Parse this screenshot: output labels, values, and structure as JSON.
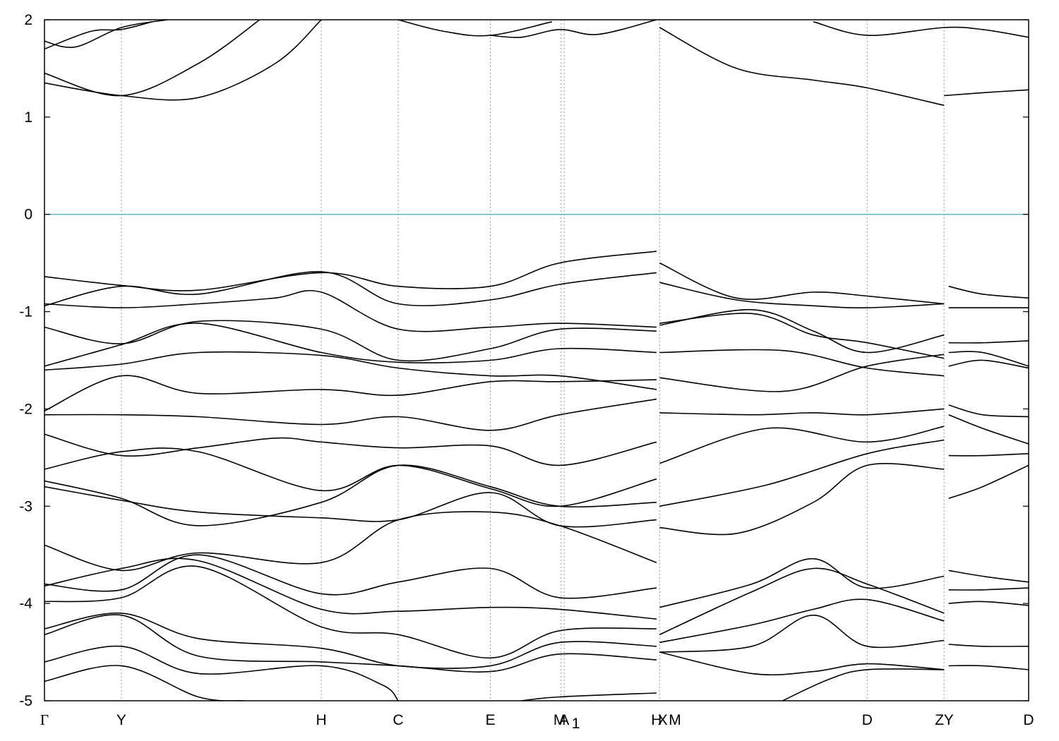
{
  "chart_data": {
    "type": "line",
    "title": "",
    "xlabel": "",
    "ylabel": "",
    "ylim": [
      -5,
      2
    ],
    "yticks": [
      "-5",
      "-4",
      "-3",
      "-2",
      "-1",
      "0",
      "1",
      "2"
    ],
    "grid": "dashed vertical lines at high-symmetry points",
    "fermi_level": {
      "y": 0,
      "color": "#64b4c8"
    },
    "kpoints": [
      {
        "label": "Γ",
        "x": 0.0
      },
      {
        "label": "Y",
        "x": 0.5
      },
      {
        "label": "H",
        "x": 1.8
      },
      {
        "label": "C",
        "x": 2.3
      },
      {
        "label": "E",
        "x": 2.9
      },
      {
        "label": "M",
        "x": 3.35
      },
      {
        "label": "A",
        "x": 3.38
      },
      {
        "label": "1",
        "x": 3.42
      },
      {
        "label": "H",
        "x": 3.98
      },
      {
        "label": "X",
        "x": 4.02
      },
      {
        "label": "M",
        "x": 4.1
      },
      {
        "label": "D",
        "x": 5.35
      },
      {
        "label": "Z",
        "x": 5.82
      },
      {
        "label": "Y",
        "x": 5.88
      },
      {
        "label": "D",
        "x": 6.4
      }
    ],
    "gridlines_x": [
      0.5,
      1.8,
      2.3,
      2.9,
      3.36,
      3.38,
      4.0,
      5.35,
      5.85
    ],
    "xlim": [
      0,
      6.4
    ],
    "series": [
      {
        "x": [
          0,
          0.5,
          1.0,
          1.5,
          1.8
        ],
        "values": [
          1.35,
          1.22,
          1.2,
          1.55,
          2.0
        ]
      },
      {
        "x": [
          0,
          0.5,
          1.0,
          1.4
        ],
        "values": [
          1.45,
          1.22,
          1.55,
          2.0
        ]
      },
      {
        "x": [
          0,
          0.2,
          0.5,
          0.8
        ],
        "values": [
          1.78,
          1.72,
          1.92,
          2.0
        ]
      },
      {
        "x": [
          0,
          0.3,
          0.5,
          0.7
        ],
        "values": [
          1.7,
          1.88,
          1.9,
          1.98
        ]
      },
      {
        "x": [
          2.9,
          3.1,
          3.35,
          3.6,
          3.98
        ],
        "values": [
          1.84,
          1.82,
          1.9,
          1.85,
          2.0
        ]
      },
      {
        "x": [
          2.3,
          2.6,
          2.9,
          3.3
        ],
        "values": [
          2.0,
          1.88,
          1.84,
          1.98
        ]
      },
      {
        "x": [
          4.0,
          4.5,
          5.0,
          5.35,
          5.85
        ],
        "values": [
          1.92,
          1.5,
          1.38,
          1.3,
          1.12
        ]
      },
      {
        "x": [
          5.85,
          6.1,
          6.4
        ],
        "values": [
          1.22,
          1.25,
          1.28
        ]
      },
      {
        "x": [
          5.0,
          5.35,
          5.85,
          6.1,
          6.4
        ],
        "values": [
          1.98,
          1.84,
          1.92,
          1.9,
          1.82
        ]
      },
      {
        "x": [
          0,
          0.5,
          1.0,
          1.8,
          2.3,
          2.9,
          3.35,
          3.98
        ],
        "values": [
          -0.64,
          -0.73,
          -0.78,
          -0.6,
          -0.74,
          -0.74,
          -0.5,
          -0.38
        ]
      },
      {
        "x": [
          0,
          0.5,
          1.0,
          1.8,
          2.3,
          2.9,
          3.35,
          3.98
        ],
        "values": [
          -0.94,
          -0.74,
          -0.82,
          -0.59,
          -0.92,
          -0.88,
          -0.72,
          -0.6
        ]
      },
      {
        "x": [
          0,
          0.5,
          1.0,
          1.5,
          1.8,
          2.3,
          2.9,
          3.35,
          3.98
        ],
        "values": [
          -0.92,
          -0.96,
          -0.92,
          -0.86,
          -0.8,
          -1.18,
          -1.16,
          -1.12,
          -1.16
        ]
      },
      {
        "x": [
          0,
          0.5,
          1.0,
          1.8,
          2.3,
          2.9,
          3.35,
          3.98
        ],
        "values": [
          -1.16,
          -1.33,
          -1.1,
          -1.18,
          -1.5,
          -1.38,
          -1.18,
          -1.2
        ]
      },
      {
        "x": [
          0,
          0.5,
          1.0,
          1.8,
          2.3,
          2.9,
          3.35,
          3.98
        ],
        "values": [
          -1.56,
          -1.34,
          -1.12,
          -1.42,
          -1.52,
          -1.5,
          -1.38,
          -1.42
        ]
      },
      {
        "x": [
          0,
          0.5,
          1.0,
          1.8,
          2.3,
          2.9,
          3.35,
          3.98
        ],
        "values": [
          -1.6,
          -1.54,
          -1.42,
          -1.45,
          -1.58,
          -1.66,
          -1.66,
          -1.8
        ]
      },
      {
        "x": [
          0,
          0.5,
          1.0,
          1.8,
          2.3,
          2.9,
          3.35,
          3.98
        ],
        "values": [
          -2.02,
          -1.66,
          -1.84,
          -1.8,
          -1.86,
          -1.72,
          -1.72,
          -1.7
        ]
      },
      {
        "x": [
          0,
          0.5,
          1.0,
          1.8,
          2.3,
          2.9,
          3.35,
          3.98
        ],
        "values": [
          -2.06,
          -2.06,
          -2.08,
          -2.16,
          -2.08,
          -2.22,
          -2.06,
          -1.9
        ]
      },
      {
        "x": [
          0,
          0.5,
          1.0,
          1.5,
          1.8,
          2.3,
          2.9,
          3.35,
          3.98
        ],
        "values": [
          -2.26,
          -2.48,
          -2.4,
          -2.3,
          -2.34,
          -2.4,
          -2.38,
          -2.58,
          -2.34
        ]
      },
      {
        "x": [
          0,
          0.5,
          1.0,
          1.8,
          2.3,
          2.9,
          3.35,
          3.98
        ],
        "values": [
          -2.62,
          -2.44,
          -2.44,
          -2.84,
          -2.58,
          -2.82,
          -3.0,
          -2.72
        ]
      },
      {
        "x": [
          0,
          0.5,
          1.0,
          1.8,
          2.3,
          2.9,
          3.35,
          3.98
        ],
        "values": [
          -2.74,
          -2.92,
          -3.2,
          -2.96,
          -2.58,
          -2.8,
          -3.0,
          -2.96
        ]
      },
      {
        "x": [
          0,
          0.5,
          1.0,
          1.8,
          2.3,
          2.9,
          3.35,
          3.98
        ],
        "values": [
          -2.8,
          -2.94,
          -3.06,
          -3.12,
          -3.14,
          -2.86,
          -3.2,
          -3.14
        ]
      },
      {
        "x": [
          0,
          0.5,
          1.0,
          1.8,
          2.3,
          2.9,
          3.35,
          3.98
        ],
        "values": [
          -3.4,
          -3.66,
          -3.48,
          -3.58,
          -3.14,
          -3.06,
          -3.2,
          -3.58
        ]
      },
      {
        "x": [
          0,
          0.5,
          1.0,
          1.8,
          2.3,
          2.9,
          3.35,
          3.98
        ],
        "values": [
          -3.8,
          -3.86,
          -3.5,
          -3.9,
          -3.78,
          -3.64,
          -3.94,
          -3.84
        ]
      },
      {
        "x": [
          0,
          0.5,
          1.0,
          1.8,
          2.3,
          2.9,
          3.35,
          3.98
        ],
        "values": [
          -3.82,
          -3.64,
          -3.56,
          -4.06,
          -4.08,
          -4.04,
          -4.06,
          -4.16
        ]
      },
      {
        "x": [
          0,
          0.5,
          1.0,
          1.8,
          2.3,
          2.9,
          3.35,
          3.98
        ],
        "values": [
          -3.98,
          -3.94,
          -3.62,
          -4.24,
          -4.32,
          -4.56,
          -4.28,
          -4.26
        ]
      },
      {
        "x": [
          0,
          0.5,
          1.0,
          1.8,
          2.3,
          2.9,
          3.35,
          3.98
        ],
        "values": [
          -4.26,
          -4.1,
          -4.36,
          -4.46,
          -4.64,
          -4.64,
          -4.4,
          -4.44
        ]
      },
      {
        "x": [
          0,
          0.5,
          1.0,
          1.8,
          2.3,
          2.9,
          3.35,
          3.98
        ],
        "values": [
          -4.32,
          -4.12,
          -4.54,
          -4.6,
          -4.64,
          -4.7,
          -4.52,
          -4.58
        ]
      },
      {
        "x": [
          0,
          0.5,
          1.0,
          1.8,
          2.2,
          2.3
        ],
        "values": [
          -4.6,
          -4.44,
          -4.72,
          -4.64,
          -4.84,
          -5.0
        ]
      },
      {
        "x": [
          0,
          0.5,
          1.0,
          1.3
        ],
        "values": [
          -4.8,
          -4.64,
          -4.96,
          -5.0
        ]
      },
      {
        "x": [
          3.1,
          3.35,
          3.98
        ],
        "values": [
          -5.0,
          -4.96,
          -4.92
        ]
      },
      {
        "x": [
          4.0,
          4.5,
          5.0,
          5.35,
          5.85
        ],
        "values": [
          -0.5,
          -0.86,
          -0.8,
          -0.84,
          -0.92
        ]
      },
      {
        "x": [
          4.0,
          4.5,
          5.0,
          5.35,
          5.85
        ],
        "values": [
          -0.7,
          -0.88,
          -0.94,
          -0.96,
          -0.92
        ]
      },
      {
        "x": [
          4.0,
          4.6,
          5.0,
          5.35,
          5.85
        ],
        "values": [
          -1.14,
          -0.98,
          -1.2,
          -1.42,
          -1.24
        ]
      },
      {
        "x": [
          4.0,
          4.6,
          5.0,
          5.35,
          5.85
        ],
        "values": [
          -1.12,
          -1.02,
          -1.24,
          -1.32,
          -1.48
        ]
      },
      {
        "x": [
          4.0,
          4.8,
          5.35,
          5.85
        ],
        "values": [
          -1.42,
          -1.4,
          -1.58,
          -1.66
        ]
      },
      {
        "x": [
          4.0,
          4.8,
          5.35,
          5.85
        ],
        "values": [
          -1.68,
          -1.82,
          -1.56,
          -1.44
        ]
      },
      {
        "x": [
          4.0,
          4.6,
          5.0,
          5.35,
          5.85
        ],
        "values": [
          -2.04,
          -2.06,
          -2.04,
          -2.06,
          -2.0
        ]
      },
      {
        "x": [
          4.0,
          4.7,
          5.35,
          5.85
        ],
        "values": [
          -2.56,
          -2.2,
          -2.34,
          -2.18
        ]
      },
      {
        "x": [
          4.0,
          4.7,
          5.35,
          5.85
        ],
        "values": [
          -3.0,
          -2.78,
          -2.46,
          -2.32
        ]
      },
      {
        "x": [
          4.0,
          4.5,
          5.0,
          5.35,
          5.85
        ],
        "values": [
          -3.22,
          -3.28,
          -2.96,
          -2.58,
          -2.62
        ]
      },
      {
        "x": [
          4.0,
          4.6,
          5.0,
          5.35,
          5.85
        ],
        "values": [
          -4.04,
          -3.8,
          -3.54,
          -3.84,
          -3.72
        ]
      },
      {
        "x": [
          4.0,
          4.6,
          5.0,
          5.35,
          5.85
        ],
        "values": [
          -4.32,
          -3.88,
          -3.64,
          -3.8,
          -4.1
        ]
      },
      {
        "x": [
          4.0,
          4.6,
          5.0,
          5.35,
          5.85
        ],
        "values": [
          -4.4,
          -4.22,
          -4.06,
          -3.96,
          -4.18
        ]
      },
      {
        "x": [
          4.0,
          4.6,
          5.0,
          5.35,
          5.85
        ],
        "values": [
          -4.5,
          -4.44,
          -4.12,
          -4.44,
          -4.38
        ]
      },
      {
        "x": [
          4.0,
          4.6,
          5.0,
          5.35,
          5.85
        ],
        "values": [
          -4.5,
          -4.72,
          -4.7,
          -4.62,
          -4.68
        ]
      },
      {
        "x": [
          4.8,
          5.1,
          5.35,
          5.85
        ],
        "values": [
          -5.0,
          -4.78,
          -4.68,
          -4.68
        ]
      },
      {
        "x": [
          5.88,
          6.1,
          6.4
        ],
        "values": [
          -0.74,
          -0.82,
          -0.86
        ]
      },
      {
        "x": [
          5.88,
          6.1,
          6.4
        ],
        "values": [
          -0.96,
          -0.96,
          -0.96
        ]
      },
      {
        "x": [
          5.88,
          6.1,
          6.4
        ],
        "values": [
          -1.32,
          -1.32,
          -1.3
        ]
      },
      {
        "x": [
          5.88,
          6.1,
          6.4
        ],
        "values": [
          -1.42,
          -1.42,
          -1.56
        ]
      },
      {
        "x": [
          5.88,
          6.1,
          6.4
        ],
        "values": [
          -1.56,
          -1.5,
          -1.58
        ]
      },
      {
        "x": [
          5.88,
          6.1,
          6.4
        ],
        "values": [
          -1.96,
          -2.06,
          -2.08
        ]
      },
      {
        "x": [
          5.88,
          6.1,
          6.4
        ],
        "values": [
          -2.06,
          -2.2,
          -2.36
        ]
      },
      {
        "x": [
          5.88,
          6.1,
          6.4
        ],
        "values": [
          -2.48,
          -2.48,
          -2.46
        ]
      },
      {
        "x": [
          5.88,
          6.1,
          6.4
        ],
        "values": [
          -2.92,
          -2.8,
          -2.58
        ]
      },
      {
        "x": [
          5.88,
          6.1,
          6.4
        ],
        "values": [
          -3.66,
          -3.72,
          -3.78
        ]
      },
      {
        "x": [
          5.88,
          6.1,
          6.4
        ],
        "values": [
          -3.86,
          -3.86,
          -3.84
        ]
      },
      {
        "x": [
          5.88,
          6.1,
          6.4
        ],
        "values": [
          -4.0,
          -3.98,
          -4.02
        ]
      },
      {
        "x": [
          5.88,
          6.1,
          6.4
        ],
        "values": [
          -4.42,
          -4.44,
          -4.44
        ]
      },
      {
        "x": [
          5.88,
          6.1,
          6.4
        ],
        "values": [
          -4.64,
          -4.64,
          -4.68
        ]
      }
    ]
  }
}
